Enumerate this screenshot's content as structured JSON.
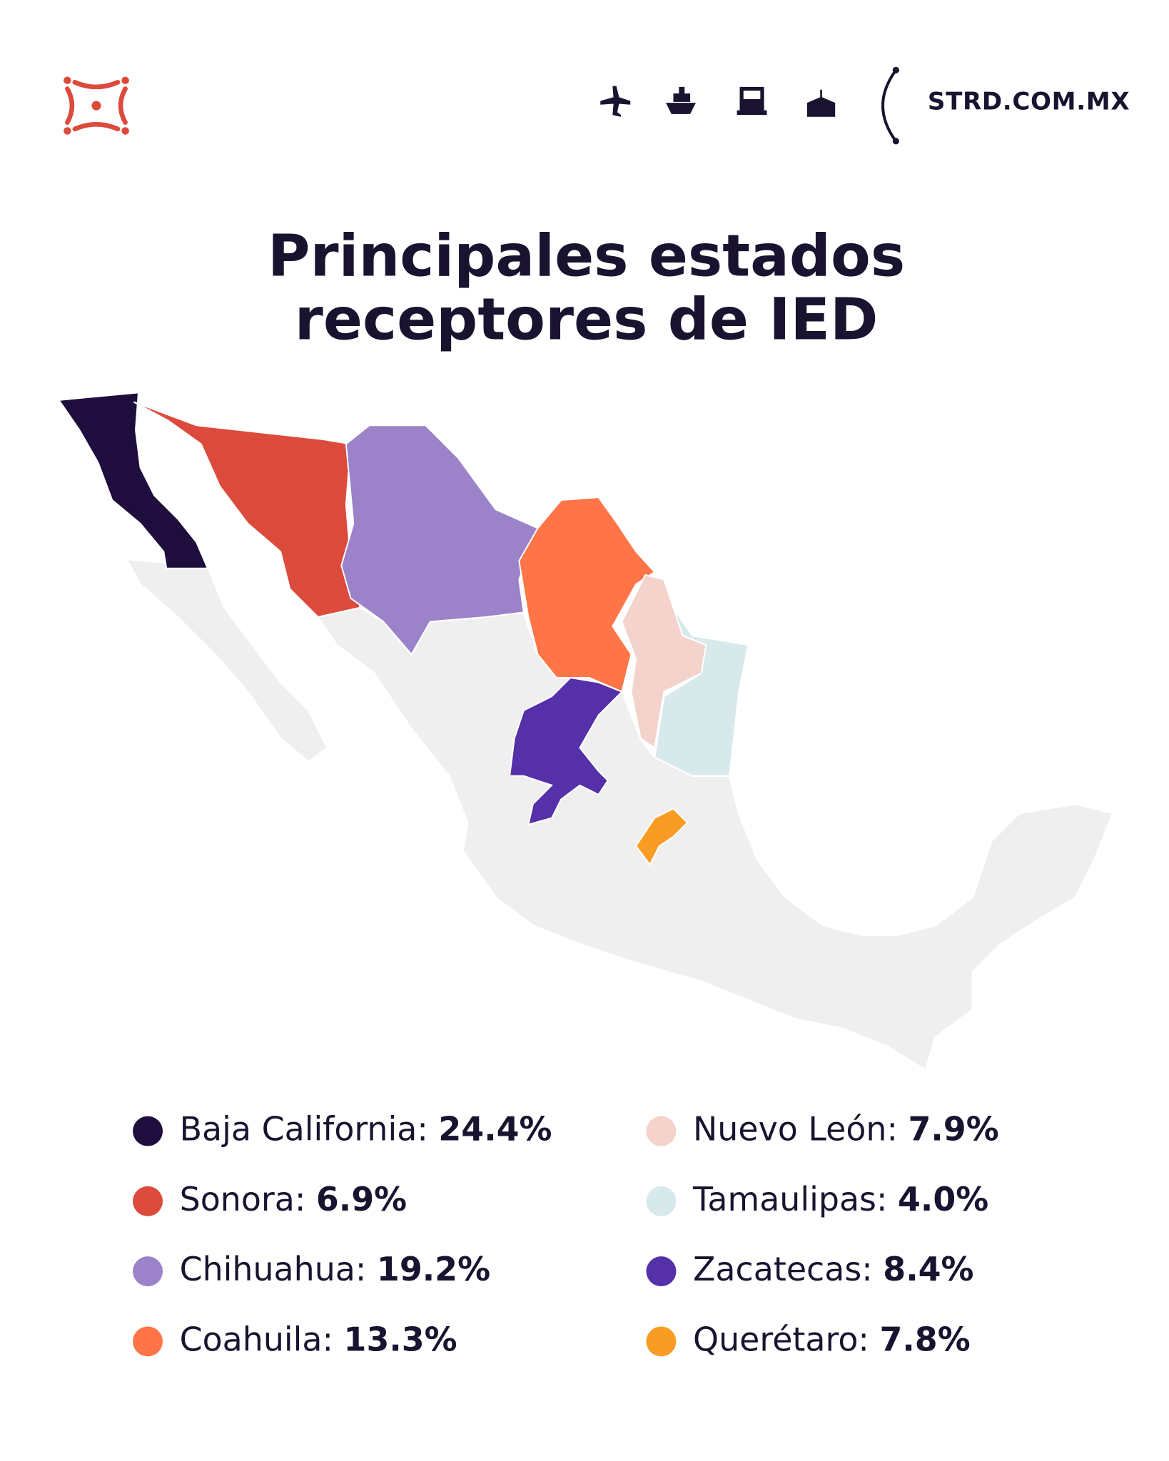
{
  "header": {
    "site": "STRD.COM.MX"
  },
  "title": [
    "Principales estados",
    "receptores de IED"
  ],
  "legend": [
    {
      "name": "Baja California:",
      "value": 24.4,
      "value_label": "24.4%",
      "color": "#1e0d3d"
    },
    {
      "name": "Sonora:",
      "value": 6.9,
      "value_label": "6.9%",
      "color": "#dc4a3c"
    },
    {
      "name": "Chihuahua:",
      "value": 19.2,
      "value_label": "19.2%",
      "color": "#9b82c9"
    },
    {
      "name": "Coahuila:",
      "value": 13.3,
      "value_label": "13.3%",
      "color": "#ff7547"
    },
    {
      "name": "Nuevo León:",
      "value": 7.9,
      "value_label": "7.9%",
      "color": "#f3d3cb"
    },
    {
      "name": "Tamaulipas:",
      "value": 4.0,
      "value_label": "4.0%",
      "color": "#d8e9eb"
    },
    {
      "name": "Zacatecas:",
      "value": 8.4,
      "value_label": "8.4%",
      "color": "#5530a8"
    },
    {
      "name": "Querétaro:",
      "value": 7.8,
      "value_label": "7.8%",
      "color": "#f99c24"
    }
  ]
}
